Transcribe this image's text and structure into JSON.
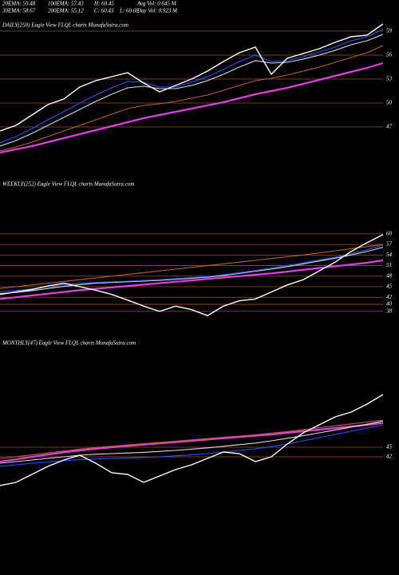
{
  "header": {
    "rows": [
      [
        "20EMA: 59.48",
        "100EMA: 57.43",
        "H: 60.45",
        "Avg Vol: 0.645 M"
      ],
      [
        "30EMA: 58.67",
        "200EMA: 55.12",
        "C: 60.43",
        "L: 60.08",
        "Day Vol: 0.923 M"
      ]
    ]
  },
  "chart_data": [
    {
      "type": "line",
      "title": "DAILY(250) Eagle  View  FLQL  charts MunafaSutra.com",
      "ylim": [
        43,
        61
      ],
      "yticks": [
        59,
        56,
        53,
        50,
        47
      ],
      "series": [
        {
          "color": "#ffffff",
          "values": [
            46.5,
            47.2,
            48.5,
            49.8,
            50.5,
            52.0,
            52.8,
            53.3,
            53.8,
            52.5,
            51.4,
            52.2,
            53.0,
            54.0,
            55.2,
            56.3,
            57.0,
            53.6,
            55.6,
            56.2,
            56.8,
            57.6,
            58.3,
            58.5,
            59.9
          ]
        },
        {
          "color": "#2255ff",
          "values": [
            45.0,
            45.8,
            46.8,
            47.9,
            48.9,
            50.0,
            51.0,
            51.9,
            52.7,
            52.6,
            52.0,
            52.0,
            52.6,
            53.3,
            54.2,
            55.2,
            56.0,
            55.2,
            55.3,
            55.8,
            56.4,
            57.0,
            57.8,
            58.3,
            59.2
          ]
        },
        {
          "color": "#dddddd",
          "values": [
            44.6,
            45.3,
            46.2,
            47.2,
            48.2,
            49.2,
            50.2,
            51.1,
            51.9,
            52.1,
            51.8,
            51.8,
            52.2,
            52.8,
            53.6,
            54.5,
            55.3,
            55.0,
            55.1,
            55.5,
            56.0,
            56.6,
            57.3,
            57.8,
            58.6
          ]
        },
        {
          "color": "#c0602a",
          "values": [
            44.0,
            44.5,
            45.1,
            45.8,
            46.5,
            47.2,
            47.9,
            48.6,
            49.3,
            49.7,
            49.9,
            50.2,
            50.6,
            51.0,
            51.6,
            52.2,
            52.8,
            53.1,
            53.5,
            54.0,
            54.5,
            55.1,
            55.7,
            56.3,
            57.2
          ]
        },
        {
          "color": "#e040e0",
          "values": [
            43.8,
            44.2,
            44.6,
            45.1,
            45.6,
            46.1,
            46.6,
            47.1,
            47.6,
            48.1,
            48.5,
            48.9,
            49.3,
            49.7,
            50.1,
            50.6,
            51.1,
            51.5,
            51.9,
            52.4,
            52.9,
            53.4,
            53.9,
            54.4,
            55.0
          ]
        }
      ]
    },
    {
      "type": "line",
      "title": "WEEKLY(252) Eagle  View  FLQL  charts MunafaSutra.com",
      "ylim": [
        35.7,
        72
      ],
      "yticks": [
        60,
        57,
        54,
        51,
        48,
        45,
        42,
        40,
        38
      ],
      "series": [
        {
          "color": "#ffffff",
          "values": [
            42.8,
            43.5,
            44.2,
            45.2,
            46.0,
            45.0,
            44.0,
            42.8,
            41.2,
            39.5,
            38.0,
            39.5,
            38.5,
            36.8,
            39.5,
            41.0,
            41.5,
            43.5,
            45.5,
            47.0,
            49.5,
            52.0,
            55.0,
            57.5,
            59.8
          ]
        },
        {
          "color": "#2255ff",
          "values": [
            43.5,
            43.9,
            44.4,
            45.0,
            45.6,
            46.0,
            46.2,
            46.4,
            46.6,
            46.8,
            47.0,
            47.3,
            47.6,
            47.9,
            48.4,
            49.0,
            49.6,
            50.3,
            51.0,
            51.8,
            52.6,
            53.4,
            54.4,
            55.5,
            56.8
          ]
        },
        {
          "color": "#dddddd",
          "values": [
            43.0,
            43.4,
            43.9,
            44.5,
            45.1,
            45.6,
            46.0,
            46.2,
            46.4,
            46.6,
            46.8,
            47.1,
            47.4,
            47.7,
            48.2,
            48.8,
            49.4,
            50.0,
            50.7,
            51.5,
            52.3,
            53.1,
            54.0,
            55.0,
            56.2
          ]
        },
        {
          "color": "#c0602a",
          "values": [
            44.5,
            45.0,
            45.5,
            46.0,
            46.5,
            47.0,
            47.5,
            48.0,
            48.5,
            49.0,
            49.5,
            50.0,
            50.5,
            51.0,
            51.5,
            52.0,
            52.5,
            53.0,
            53.5,
            54.0,
            54.6,
            55.2,
            55.8,
            56.4,
            57.0
          ]
        },
        {
          "color": "#e040e0",
          "values": [
            41.5,
            42.0,
            42.5,
            43.0,
            43.5,
            44.0,
            44.4,
            44.8,
            45.2,
            45.6,
            46.0,
            46.4,
            46.8,
            47.2,
            47.6,
            48.0,
            48.4,
            48.8,
            49.3,
            49.8,
            50.3,
            50.8,
            51.3,
            51.8,
            52.5
          ]
        }
      ]
    },
    {
      "type": "line",
      "title": "MONTHLY(47) Eagle  View  FLQL  charts MunafaSutra.com",
      "ylim": [
        32.5,
        75
      ],
      "yticks": [
        45,
        42
      ],
      "series": [
        {
          "color": "#ffffff",
          "values": [
            33.0,
            34.0,
            36.5,
            39.0,
            41.0,
            42.5,
            40.0,
            37.0,
            36.5,
            34.0,
            36.0,
            38.0,
            39.5,
            41.5,
            43.5,
            43.0,
            40.5,
            42.0,
            46.0,
            49.5,
            52.0,
            54.5,
            56.0,
            58.5,
            61.5
          ]
        },
        {
          "color": "#2255ff",
          "values": [
            39.0,
            39.5,
            40.0,
            40.4,
            40.8,
            41.1,
            41.3,
            41.5,
            41.6,
            41.8,
            42.0,
            42.3,
            42.6,
            43.0,
            43.5,
            44.0,
            44.5,
            45.2,
            46.0,
            47.0,
            48.0,
            49.0,
            50.0,
            51.0,
            52.0
          ]
        },
        {
          "color": "#dddddd",
          "values": [
            40.0,
            40.5,
            41.0,
            41.5,
            42.0,
            42.5,
            42.8,
            43.0,
            43.2,
            43.4,
            43.7,
            44.0,
            44.4,
            44.8,
            45.3,
            45.8,
            46.3,
            47.0,
            47.8,
            48.6,
            49.5,
            50.4,
            51.3,
            52.2,
            53.2
          ]
        },
        {
          "color": "#c0602a",
          "values": [
            41.5,
            42.0,
            42.6,
            43.2,
            43.8,
            44.4,
            44.9,
            45.3,
            45.7,
            46.1,
            46.5,
            46.9,
            47.3,
            47.7,
            48.1,
            48.5,
            48.9,
            49.4,
            49.9,
            50.5,
            51.1,
            51.7,
            52.3,
            52.9,
            53.5
          ]
        },
        {
          "color": "#e040e0",
          "values": [
            40.5,
            41.2,
            42.0,
            42.7,
            43.4,
            44.0,
            44.5,
            45.0,
            45.4,
            45.8,
            46.2,
            46.6,
            47.0,
            47.4,
            47.8,
            48.2,
            48.6,
            49.0,
            49.5,
            50.0,
            50.5,
            51.0,
            51.5,
            52.0,
            52.6
          ]
        }
      ]
    }
  ]
}
